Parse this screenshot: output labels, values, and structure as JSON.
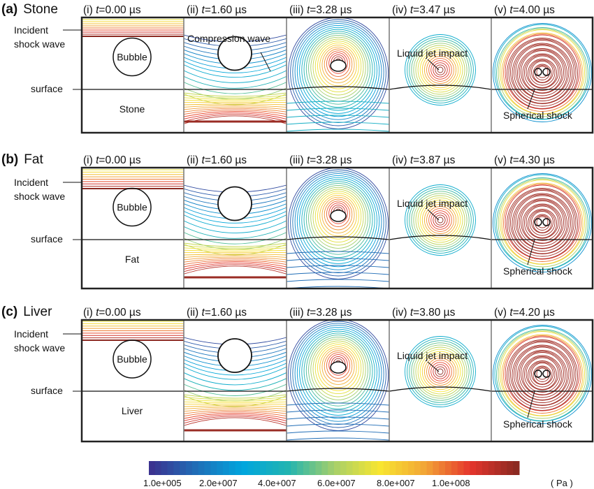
{
  "figure": {
    "time_unit": "µs",
    "time_symbol": "t",
    "rows": [
      {
        "letter": "(a)",
        "material": "Stone",
        "panels": [
          {
            "numeral": "(i)",
            "time": "0.00"
          },
          {
            "numeral": "(ii)",
            "time": "1.60"
          },
          {
            "numeral": "(iii)",
            "time": "3.28"
          },
          {
            "numeral": "(iv)",
            "time": "3.47"
          },
          {
            "numeral": "(v)",
            "time": "4.00"
          }
        ],
        "labels": {
          "incident_1": "Incident",
          "incident_2": "shock wave",
          "surface": "surface",
          "bubble": "Bubble",
          "material_label": "Stone",
          "compression": "Compression wave",
          "jet": "Liquid jet impact",
          "spherical": "Spherical shock"
        }
      },
      {
        "letter": "(b)",
        "material": "Fat",
        "panels": [
          {
            "numeral": "(i)",
            "time": "0.00"
          },
          {
            "numeral": "(ii)",
            "time": "1.60"
          },
          {
            "numeral": "(iii)",
            "time": "3.28"
          },
          {
            "numeral": "(iv)",
            "time": "3.87"
          },
          {
            "numeral": "(v)",
            "time": "4.30"
          }
        ],
        "labels": {
          "incident_1": "Incident",
          "incident_2": "shock wave",
          "surface": "surface",
          "bubble": "Bubble",
          "material_label": "Fat",
          "jet": "Liquid jet impact",
          "spherical": "Spherical shock"
        }
      },
      {
        "letter": "(c)",
        "material": "Liver",
        "panels": [
          {
            "numeral": "(i)",
            "time": "0.00"
          },
          {
            "numeral": "(ii)",
            "time": "1.60"
          },
          {
            "numeral": "(iii)",
            "time": "3.28"
          },
          {
            "numeral": "(iv)",
            "time": "3.80"
          },
          {
            "numeral": "(v)",
            "time": "4.20"
          }
        ],
        "labels": {
          "incident_1": "Incident",
          "incident_2": "shock wave",
          "surface": "surface",
          "bubble": "Bubble",
          "material_label": "Liver",
          "jet": "Liquid jet impact",
          "spherical": "Spherical shock"
        }
      }
    ],
    "colorbar": {
      "min": 100000,
      "max": 100000000,
      "ticks": [
        "1.0e+005",
        "2.0e+007",
        "4.0e+007",
        "6.0e+007",
        "8.0e+007",
        "1.0e+008"
      ],
      "unit": "( Pa )",
      "colormap": [
        "#3b3390",
        "#1f6fb8",
        "#00a6de",
        "#22b4b0",
        "#a6cf6a",
        "#f8e630",
        "#f2a536",
        "#e5352d",
        "#8c2a22"
      ]
    }
  }
}
